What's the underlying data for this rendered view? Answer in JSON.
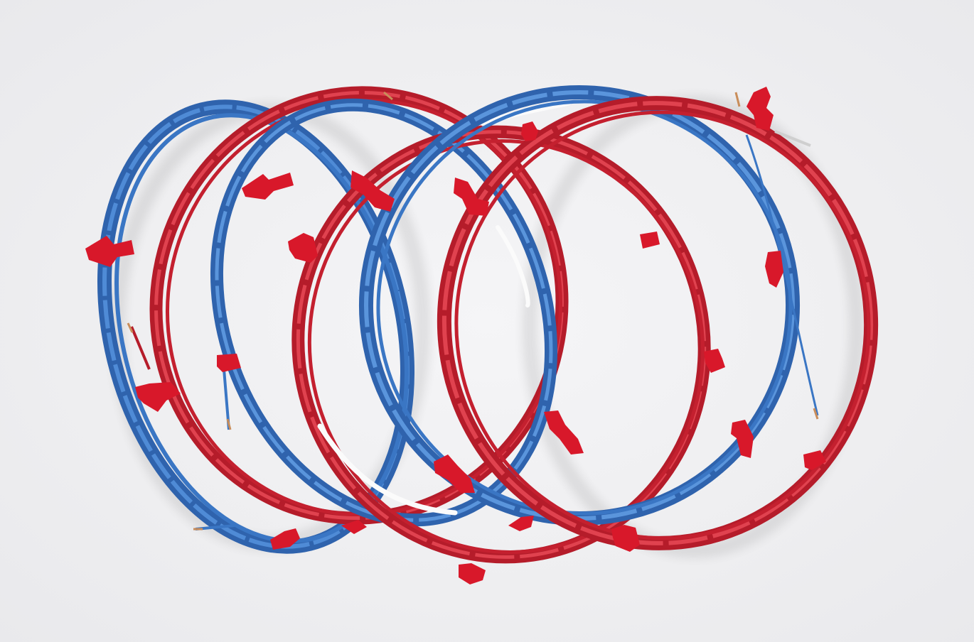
{
  "scene": {
    "subject": "coiled wires",
    "background_color": "#efeff1",
    "colors": {
      "blue_wire": "#3a76c4",
      "blue_wire_light": "#5a95dc",
      "red_wire": "#c4202f",
      "red_wire_light": "#e0424f",
      "white_wire": "#fbfbfb",
      "tape": "#d8182a",
      "copper": "#c98d5a"
    },
    "coils": [
      {
        "name": "blue-coil-left",
        "color": "blue"
      },
      {
        "name": "red-coil-left",
        "color": "red"
      },
      {
        "name": "blue-coil-center",
        "color": "blue"
      },
      {
        "name": "red-coil-center",
        "color": "red"
      },
      {
        "name": "blue-coil-right",
        "color": "blue"
      },
      {
        "name": "red-coil-right",
        "color": "red"
      }
    ]
  }
}
